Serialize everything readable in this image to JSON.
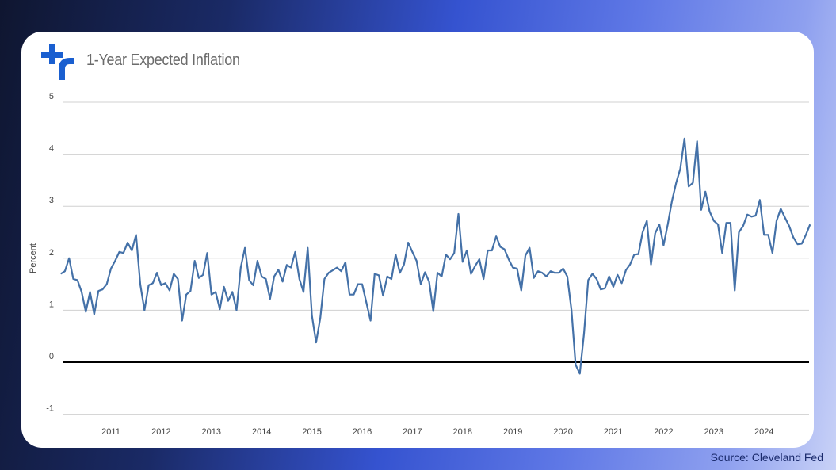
{
  "header": {
    "title": "1-Year Expected Inflation",
    "logo_icon": "cleveland-fed-logo"
  },
  "source": "Source: Cleveland Fed",
  "colors": {
    "line": "#4471a8",
    "grid": "#d0d0d0",
    "zero": "#000000",
    "logo": "#1a5fd0"
  },
  "chart_data": {
    "type": "line",
    "title": "1-Year Expected Inflation",
    "xlabel": "",
    "ylabel": "Percent",
    "ylim": [
      -1,
      5
    ],
    "yticks": [
      "-1",
      "0",
      "1",
      "2",
      "3",
      "4",
      "5"
    ],
    "xticks": [
      "2011",
      "2012",
      "2013",
      "2014",
      "2015",
      "2016",
      "2017",
      "2018",
      "2019",
      "2020",
      "2021",
      "2022",
      "2023",
      "2024"
    ],
    "x_start": "2010-01",
    "frequency": "monthly",
    "grid": true,
    "series": [
      {
        "name": "1-Year Expected Inflation",
        "values": [
          1.7,
          1.75,
          2.0,
          1.6,
          1.58,
          1.35,
          0.97,
          1.35,
          0.92,
          1.37,
          1.4,
          1.5,
          1.8,
          1.95,
          2.12,
          2.1,
          2.3,
          2.15,
          2.45,
          1.5,
          1.0,
          1.48,
          1.52,
          1.72,
          1.48,
          1.52,
          1.38,
          1.7,
          1.6,
          0.8,
          1.3,
          1.37,
          1.95,
          1.62,
          1.68,
          2.1,
          1.3,
          1.35,
          1.02,
          1.45,
          1.18,
          1.35,
          1.0,
          1.82,
          2.2,
          1.58,
          1.48,
          1.95,
          1.65,
          1.6,
          1.22,
          1.65,
          1.78,
          1.55,
          1.87,
          1.82,
          2.12,
          1.6,
          1.35,
          2.2,
          0.9,
          0.38,
          0.85,
          1.6,
          1.72,
          1.77,
          1.82,
          1.75,
          1.92,
          1.3,
          1.3,
          1.5,
          1.5,
          1.15,
          0.8,
          1.7,
          1.67,
          1.28,
          1.65,
          1.6,
          2.07,
          1.72,
          1.88,
          2.3,
          2.12,
          1.95,
          1.5,
          1.73,
          1.55,
          0.98,
          1.72,
          1.65,
          2.07,
          1.98,
          2.1,
          2.85,
          1.93,
          2.15,
          1.7,
          1.85,
          1.98,
          1.6,
          2.15,
          2.15,
          2.42,
          2.22,
          2.17,
          1.98,
          1.82,
          1.8,
          1.38,
          2.05,
          2.2,
          1.62,
          1.75,
          1.72,
          1.65,
          1.75,
          1.72,
          1.72,
          1.8,
          1.65,
          1.0,
          -0.05,
          -0.22,
          0.55,
          1.58,
          1.7,
          1.6,
          1.4,
          1.42,
          1.65,
          1.45,
          1.68,
          1.52,
          1.77,
          1.88,
          2.07,
          2.08,
          2.5,
          2.72,
          1.88,
          2.48,
          2.65,
          2.25,
          2.65,
          3.1,
          3.45,
          3.72,
          4.3,
          3.38,
          3.45,
          4.25,
          2.93,
          3.28,
          2.9,
          2.72,
          2.65,
          2.1,
          2.68,
          2.68,
          1.38,
          2.5,
          2.62,
          2.84,
          2.8,
          2.82,
          3.12,
          2.45,
          2.45,
          2.1,
          2.72,
          2.95,
          2.78,
          2.62,
          2.4,
          2.27,
          2.28,
          2.45,
          2.65
        ]
      }
    ]
  }
}
